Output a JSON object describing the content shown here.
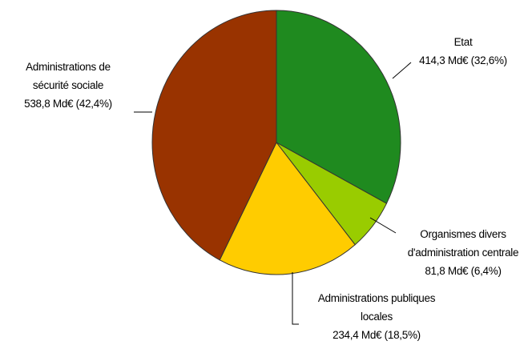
{
  "chart_data": {
    "type": "pie",
    "categories": [
      "Etat",
      "Organismes divers\nd'administration centrale",
      "Administrations publiques\nlocales",
      "Administrations de\nsécurité sociale"
    ],
    "values": [
      414.3,
      81.8,
      234.4,
      538.8
    ],
    "value_labels": [
      "414,3 Md€ (32,6%)",
      "81,8 Md€ (6,4%)",
      "234,4 Md€ (18,5%)",
      "538,8 Md€ (42,4%)"
    ],
    "colors": [
      "#1f8a1f",
      "#99cc00",
      "#ffcc00",
      "#993300"
    ]
  }
}
